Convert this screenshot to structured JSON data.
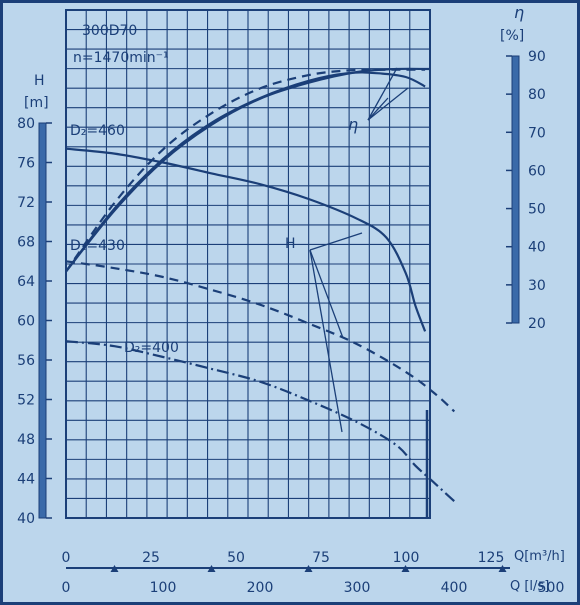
{
  "chart_data": {
    "type": "line",
    "model": "300D70",
    "speed": "n=1470min⁻¹",
    "left_axis": {
      "symbol": "H",
      "unit": "[m]",
      "range": [
        40,
        80
      ],
      "ticks": [
        "40",
        "44",
        "48",
        "52",
        "56",
        "60",
        "64",
        "68",
        "72",
        "76",
        "80"
      ]
    },
    "right_axis": {
      "symbol": "η",
      "unit": "[%]",
      "range": [
        20,
        90
      ],
      "ticks": [
        "20",
        "30",
        "40",
        "50",
        "60",
        "70",
        "80",
        "90"
      ]
    },
    "x_axis_q_m3h": {
      "label": "Q[m³/h]",
      "ticks": [
        "0",
        "25",
        "50",
        "75",
        "100",
        "125"
      ]
    },
    "x_axis_q_ls": {
      "label": "Q [l/s]",
      "ticks": [
        "0",
        "100",
        "200",
        "300",
        "400",
        "500"
      ]
    },
    "head_curves": [
      {
        "name": "D₂=460",
        "style": "solid",
        "points": [
          [
            0,
            77.4
          ],
          [
            50,
            76.9
          ],
          [
            100,
            76.0
          ],
          [
            150,
            74.9
          ],
          [
            200,
            73.8
          ],
          [
            250,
            72.3
          ],
          [
            300,
            70.3
          ],
          [
            330,
            68.4
          ],
          [
            350,
            64.8
          ],
          [
            360,
            61.5
          ],
          [
            370,
            58.9
          ]
        ]
      },
      {
        "name": "D₂=430",
        "style": "dashed",
        "points": [
          [
            0,
            66.0
          ],
          [
            50,
            65.3
          ],
          [
            100,
            64.4
          ],
          [
            150,
            63.1
          ],
          [
            200,
            61.6
          ],
          [
            250,
            59.7
          ],
          [
            300,
            57.6
          ],
          [
            350,
            54.8
          ],
          [
            380,
            52.6
          ],
          [
            400,
            50.8
          ]
        ]
      },
      {
        "name": "D₂=400",
        "style": "dashdot",
        "points": [
          [
            0,
            57.9
          ],
          [
            50,
            57.4
          ],
          [
            100,
            56.3
          ],
          [
            150,
            55.1
          ],
          [
            200,
            53.8
          ],
          [
            250,
            51.9
          ],
          [
            300,
            49.7
          ],
          [
            340,
            47.4
          ],
          [
            360,
            45.3
          ],
          [
            380,
            43.5
          ],
          [
            400,
            41.7
          ]
        ]
      }
    ],
    "efficiency_curves": [
      {
        "style": "solid",
        "points": [
          [
            0,
            33.5
          ],
          [
            50,
            50.0
          ],
          [
            100,
            63.0
          ],
          [
            150,
            72.5
          ],
          [
            200,
            79.0
          ],
          [
            250,
            83.5
          ],
          [
            290,
            85.5
          ],
          [
            320,
            85.5
          ],
          [
            350,
            84.5
          ],
          [
            370,
            82.0
          ]
        ]
      },
      {
        "style": "dashed",
        "points": [
          [
            0,
            33.5
          ],
          [
            50,
            51.5
          ],
          [
            100,
            65.5
          ],
          [
            150,
            75.0
          ],
          [
            200,
            81.5
          ],
          [
            250,
            85.0
          ],
          [
            290,
            86.2
          ],
          [
            330,
            86.4
          ],
          [
            370,
            86.4
          ]
        ]
      },
      {
        "style": "solid",
        "points": [
          [
            0,
            33.5
          ],
          [
            50,
            49.5
          ],
          [
            100,
            62.5
          ],
          [
            150,
            72.0
          ],
          [
            200,
            78.8
          ],
          [
            250,
            83.0
          ],
          [
            300,
            85.8
          ],
          [
            340,
            86.6
          ],
          [
            375,
            86.6
          ]
        ]
      }
    ],
    "annotations": {
      "head_label": "H",
      "eff_label": "η"
    },
    "grid": true
  }
}
